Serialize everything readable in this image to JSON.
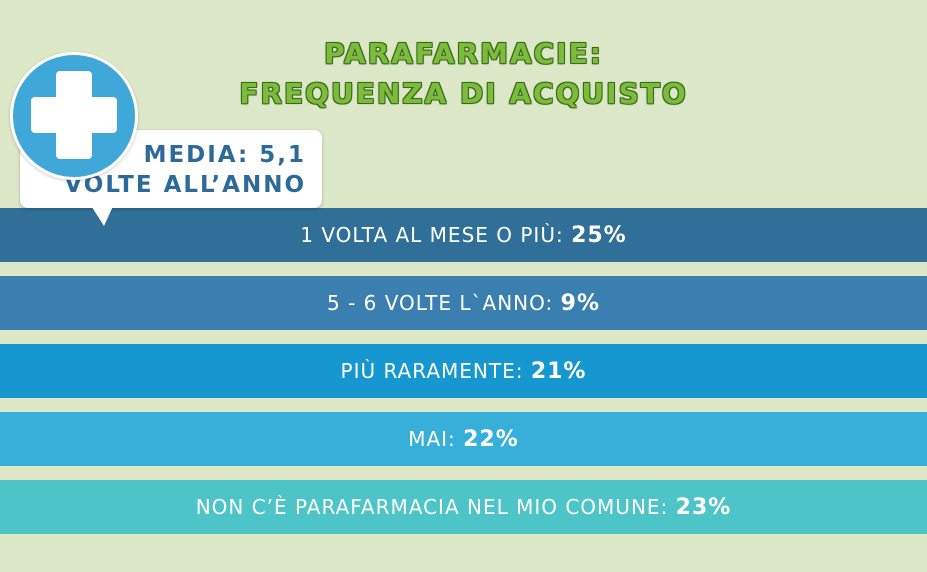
{
  "chart_data": {
    "type": "bar",
    "title_lines": [
      "PARAFARMACIE:",
      "FREQUENZA DI ACQUISTO"
    ],
    "annotation_lines": [
      "MEDIA: 5,1",
      "VOLTE ALL’ANNO"
    ],
    "bars": [
      {
        "label": "1 VOLTA AL MESE O PIÙ: ",
        "value_text": "25%",
        "value": 25,
        "color": "#2f6f98"
      },
      {
        "label": "5 - 6 VOLTE L`ANNO: ",
        "value_text": "9%",
        "value": 9,
        "color": "#3b7fb0"
      },
      {
        "label": "PIÙ RARAMENTE: ",
        "value_text": "21%",
        "value": 21,
        "color": "#1797cf"
      },
      {
        "label": "MAI: ",
        "value_text": "22%",
        "value": 22,
        "color": "#37afd9"
      },
      {
        "label": "NON C’È PARAFARMACIA NEL MIO COMUNE: ",
        "value_text": "23%",
        "value": 23,
        "color": "#4cc4c8"
      }
    ]
  },
  "icons": {
    "badge": "plus-icon"
  },
  "colors": {
    "background": "#dce8c8",
    "title": "#7dbb3c",
    "annotation_text": "#2d6a9a",
    "badge": "#3fa8d8"
  }
}
